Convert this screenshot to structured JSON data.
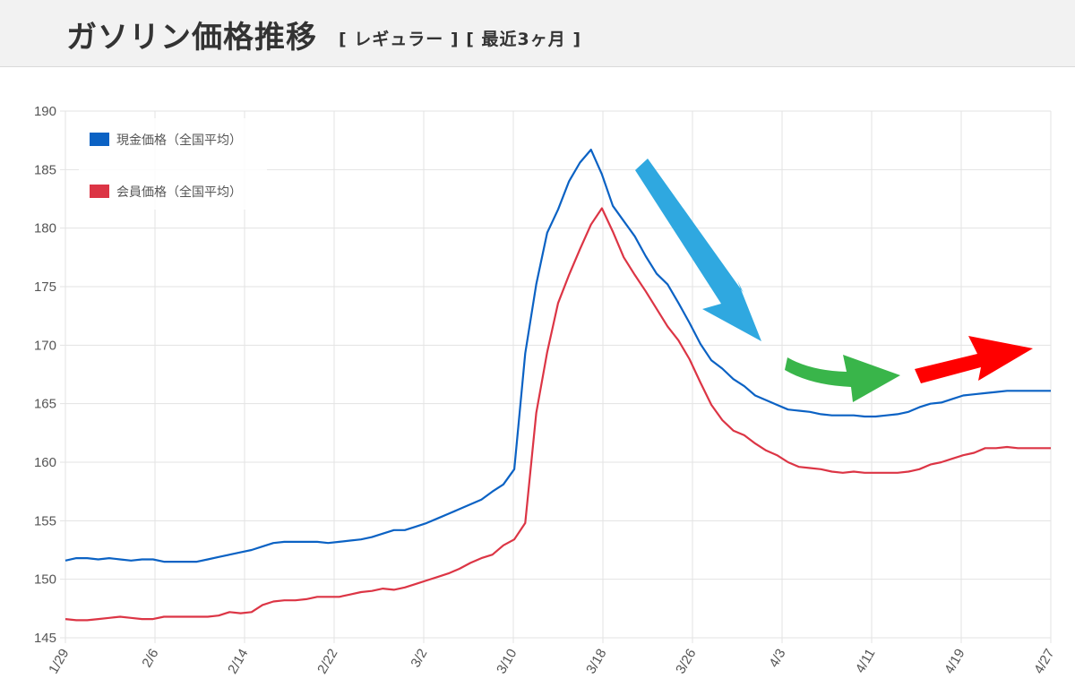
{
  "header": {
    "title": "ガソリン価格推移",
    "subtitle": "[ レギュラー ] [ 最近3ヶ月 ]"
  },
  "chart_data": {
    "type": "line",
    "ylim": [
      145,
      190
    ],
    "yticks": [
      145,
      150,
      155,
      160,
      165,
      170,
      175,
      180,
      185,
      190
    ],
    "xticks": [
      "1/29",
      "2/6",
      "2/14",
      "2/22",
      "3/2",
      "3/10",
      "3/18",
      "3/26",
      "4/3",
      "4/11",
      "4/19",
      "4/27"
    ],
    "grid": true,
    "legend_position": "top-left",
    "series": [
      {
        "name": "現金価格（全国平均）",
        "color": "#0b62c4",
        "values": [
          151.6,
          151.8,
          151.8,
          151.7,
          151.8,
          151.7,
          151.6,
          151.7,
          151.7,
          151.5,
          151.5,
          151.5,
          151.5,
          151.7,
          151.9,
          152.1,
          152.3,
          152.5,
          152.8,
          153.1,
          153.2,
          153.2,
          153.2,
          153.2,
          153.1,
          153.2,
          153.3,
          153.4,
          153.6,
          153.9,
          154.2,
          154.2,
          154.5,
          154.8,
          155.2,
          155.6,
          156.0,
          156.4,
          156.8,
          157.5,
          158.1,
          159.4,
          169.3,
          175.2,
          179.6,
          181.6,
          184.0,
          185.6,
          186.7,
          184.6,
          181.9,
          180.6,
          179.3,
          177.6,
          176.1,
          175.2,
          173.6,
          171.9,
          170.1,
          168.7,
          168.0,
          167.1,
          166.5,
          165.7,
          165.3,
          164.9,
          164.5,
          164.4,
          164.3,
          164.1,
          164.0,
          164.0,
          164.0,
          163.9,
          163.9,
          164.0,
          164.1,
          164.3,
          164.7,
          165.0,
          165.1,
          165.4,
          165.7,
          165.8,
          165.9,
          166.0,
          166.1,
          166.1,
          166.1,
          166.1,
          166.1
        ]
      },
      {
        "name": "会員価格（全国平均）",
        "color": "#dc3545",
        "values": [
          146.6,
          146.5,
          146.5,
          146.6,
          146.7,
          146.8,
          146.7,
          146.6,
          146.6,
          146.8,
          146.8,
          146.8,
          146.8,
          146.8,
          146.9,
          147.2,
          147.1,
          147.2,
          147.8,
          148.1,
          148.2,
          148.2,
          148.3,
          148.5,
          148.5,
          148.5,
          148.7,
          148.9,
          149.0,
          149.2,
          149.1,
          149.3,
          149.6,
          149.9,
          150.2,
          150.5,
          150.9,
          151.4,
          151.8,
          152.1,
          152.9,
          153.4,
          154.8,
          164.2,
          169.4,
          173.6,
          176.0,
          178.2,
          180.3,
          181.7,
          179.7,
          177.5,
          176.0,
          174.6,
          173.1,
          171.6,
          170.4,
          168.8,
          166.8,
          164.9,
          163.6,
          162.7,
          162.3,
          161.6,
          161.0,
          160.6,
          160.0,
          159.6,
          159.5,
          159.4,
          159.2,
          159.1,
          159.2,
          159.1,
          159.1,
          159.1,
          159.1,
          159.2,
          159.4,
          159.8,
          160.0,
          160.3,
          160.6,
          160.8,
          161.2,
          161.2,
          161.3,
          161.2,
          161.2,
          161.2,
          161.2
        ]
      }
    ]
  },
  "annotations": {
    "colors": [
      "#2fa8e0",
      "#39b54a",
      "#ff0000"
    ],
    "icons": [
      "trend-down-arrow-icon",
      "trend-flat-arrow-icon",
      "trend-up-arrow-icon"
    ]
  }
}
